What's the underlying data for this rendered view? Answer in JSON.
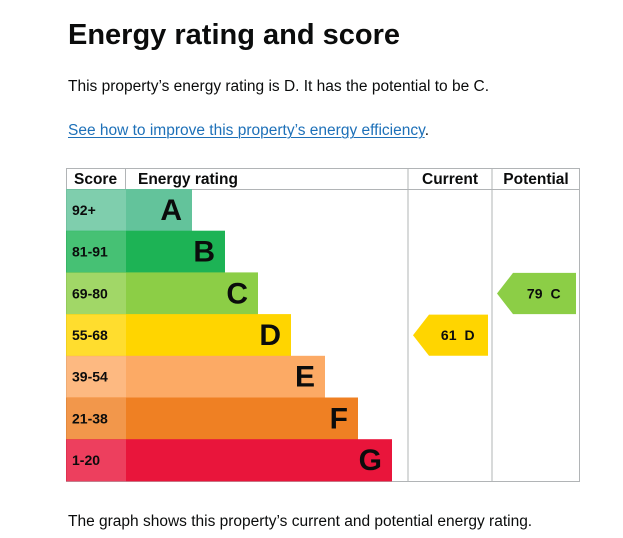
{
  "heading": "Energy rating and score",
  "intro_text": "This property’s energy rating is D. It has the potential to be C.",
  "improve_link_text": "See how to improve this property’s energy efficiency",
  "improve_link_suffix": ".",
  "caption_text": "The graph shows this property’s current and potential energy rating.",
  "chart_data": {
    "type": "bar",
    "headers": {
      "score": "Score",
      "rating": "Energy rating",
      "current": "Current",
      "potential": "Potential"
    },
    "bands": [
      {
        "score": "92+",
        "letter": "A",
        "color": "#63c39b",
        "label_color": "#0b0c0c"
      },
      {
        "score": "81-91",
        "letter": "B",
        "color": "#1db355",
        "label_color": "#0b0c0c"
      },
      {
        "score": "69-80",
        "letter": "C",
        "color": "#8cce46",
        "label_color": "#0b0c0c"
      },
      {
        "score": "55-68",
        "letter": "D",
        "color": "#ffd500",
        "label_color": "#0b0c0c"
      },
      {
        "score": "39-54",
        "letter": "E",
        "color": "#fcaa65",
        "label_color": "#0b0c0c"
      },
      {
        "score": "21-38",
        "letter": "F",
        "color": "#ef8023",
        "label_color": "#0b0c0c"
      },
      {
        "score": "1-20",
        "letter": "G",
        "color": "#e9153b",
        "label_color": "#0b0c0c"
      }
    ],
    "current": {
      "value": 61,
      "rating": "D",
      "color": "#ffd500"
    },
    "potential": {
      "value": 79,
      "rating": "C",
      "color": "#8cce46"
    }
  }
}
